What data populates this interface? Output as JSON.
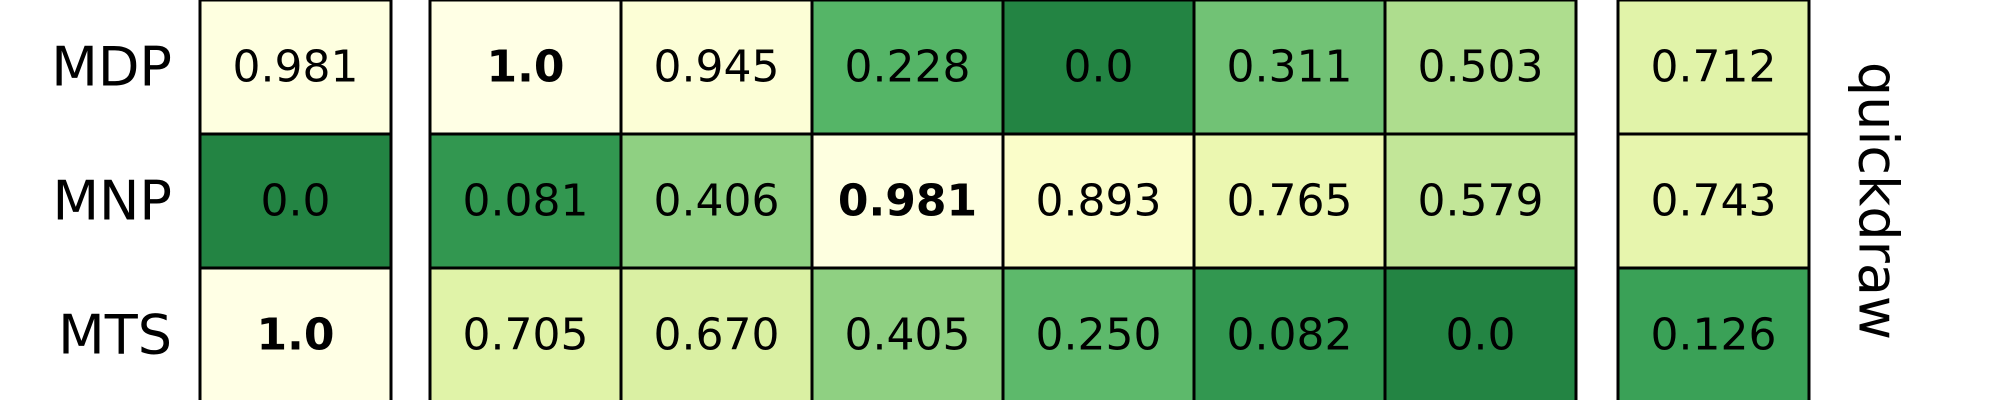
{
  "chart_data": {
    "type": "heatmap",
    "side_label": "quickdraw",
    "rows": [
      "MDP",
      "MNP",
      "MTS"
    ],
    "groups": [
      {
        "values": [
          [
            "0.981"
          ],
          [
            "0.0"
          ],
          [
            "1.0"
          ]
        ],
        "bold": [
          [
            false
          ],
          [
            false
          ],
          [
            true
          ]
        ]
      },
      {
        "values": [
          [
            "1.0",
            "0.945",
            "0.228",
            "0.0",
            "0.311",
            "0.503"
          ],
          [
            "0.081",
            "0.406",
            "0.981",
            "0.893",
            "0.765",
            "0.579"
          ],
          [
            "0.705",
            "0.670",
            "0.405",
            "0.250",
            "0.082",
            "0.0"
          ]
        ],
        "bold": [
          [
            true,
            false,
            false,
            false,
            false,
            false
          ],
          [
            false,
            false,
            true,
            false,
            false,
            false
          ],
          [
            false,
            false,
            false,
            false,
            false,
            false
          ]
        ]
      },
      {
        "values": [
          [
            "0.712"
          ],
          [
            "0.743"
          ],
          [
            "0.126"
          ]
        ],
        "bold": [
          [
            false
          ],
          [
            false
          ],
          [
            false
          ]
        ]
      }
    ],
    "colormap": "Greens reversed",
    "colormap_stops": [
      "#ffffe5",
      "#f7fcb9",
      "#d9f0a3",
      "#addd8e",
      "#78c679",
      "#41ab5d",
      "#238443"
    ]
  }
}
